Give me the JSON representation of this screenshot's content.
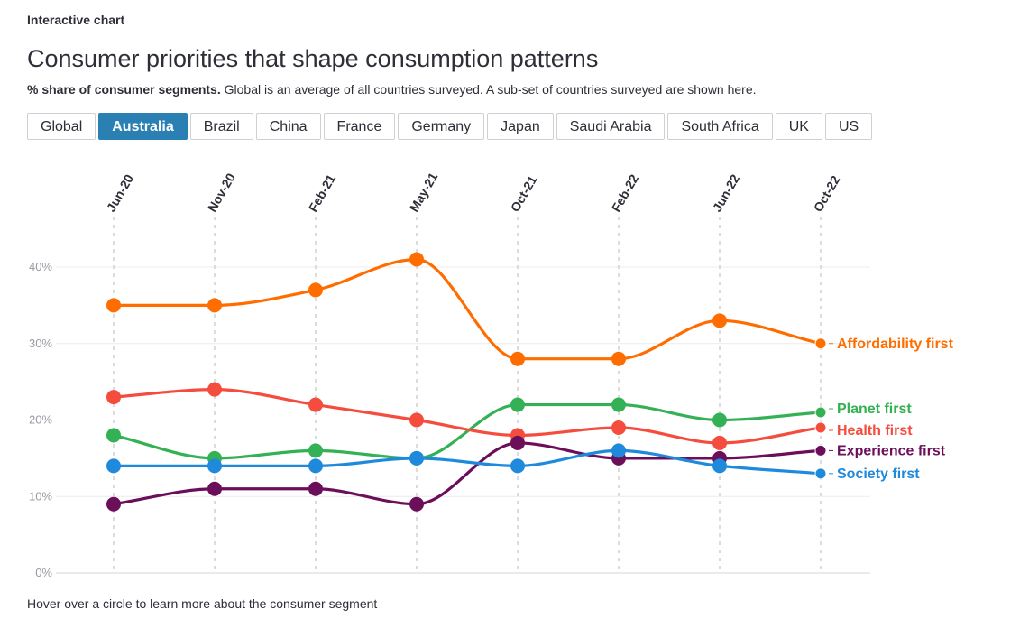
{
  "header": {
    "kicker": "Interactive chart",
    "title": "Consumer priorities that shape consumption patterns",
    "subtitle_bold": "% share of consumer segments.",
    "subtitle_rest": " Global is an average of all countries surveyed. A sub-set of countries surveyed are shown here."
  },
  "tabs": [
    {
      "label": "Global",
      "active": false
    },
    {
      "label": "Australia",
      "active": true
    },
    {
      "label": "Brazil",
      "active": false
    },
    {
      "label": "China",
      "active": false
    },
    {
      "label": "France",
      "active": false
    },
    {
      "label": "Germany",
      "active": false
    },
    {
      "label": "Japan",
      "active": false
    },
    {
      "label": "Saudi Arabia",
      "active": false
    },
    {
      "label": "South Africa",
      "active": false
    },
    {
      "label": "UK",
      "active": false
    },
    {
      "label": "US",
      "active": false
    }
  ],
  "footer": "Hover over a circle to learn more about the consumer segment",
  "chart_data": {
    "type": "line",
    "title": "Consumer priorities that shape consumption patterns",
    "categories": [
      "Jun-20",
      "Nov-20",
      "Feb-21",
      "May-21",
      "Oct-21",
      "Feb-22",
      "Jun-22",
      "Oct-22"
    ],
    "yticks": [
      "0%",
      "10%",
      "20%",
      "30%",
      "40%"
    ],
    "ylim": [
      0,
      40
    ],
    "grid": true,
    "series": [
      {
        "name": "Affordability first",
        "color": "#ff6d00",
        "values": [
          35,
          35,
          37,
          41,
          28,
          28,
          33,
          30
        ]
      },
      {
        "name": "Planet first",
        "color": "#34b155",
        "values": [
          18,
          15,
          16,
          15,
          22,
          22,
          20,
          21
        ]
      },
      {
        "name": "Health first",
        "color": "#f44c3d",
        "values": [
          23,
          24,
          22,
          20,
          18,
          19,
          17,
          19
        ]
      },
      {
        "name": "Experience first",
        "color": "#6c0f5a",
        "values": [
          9,
          11,
          11,
          9,
          17,
          15,
          15,
          16
        ]
      },
      {
        "name": "Society first",
        "color": "#1f89dc",
        "values": [
          14,
          14,
          14,
          15,
          14,
          16,
          14,
          13
        ]
      }
    ]
  }
}
